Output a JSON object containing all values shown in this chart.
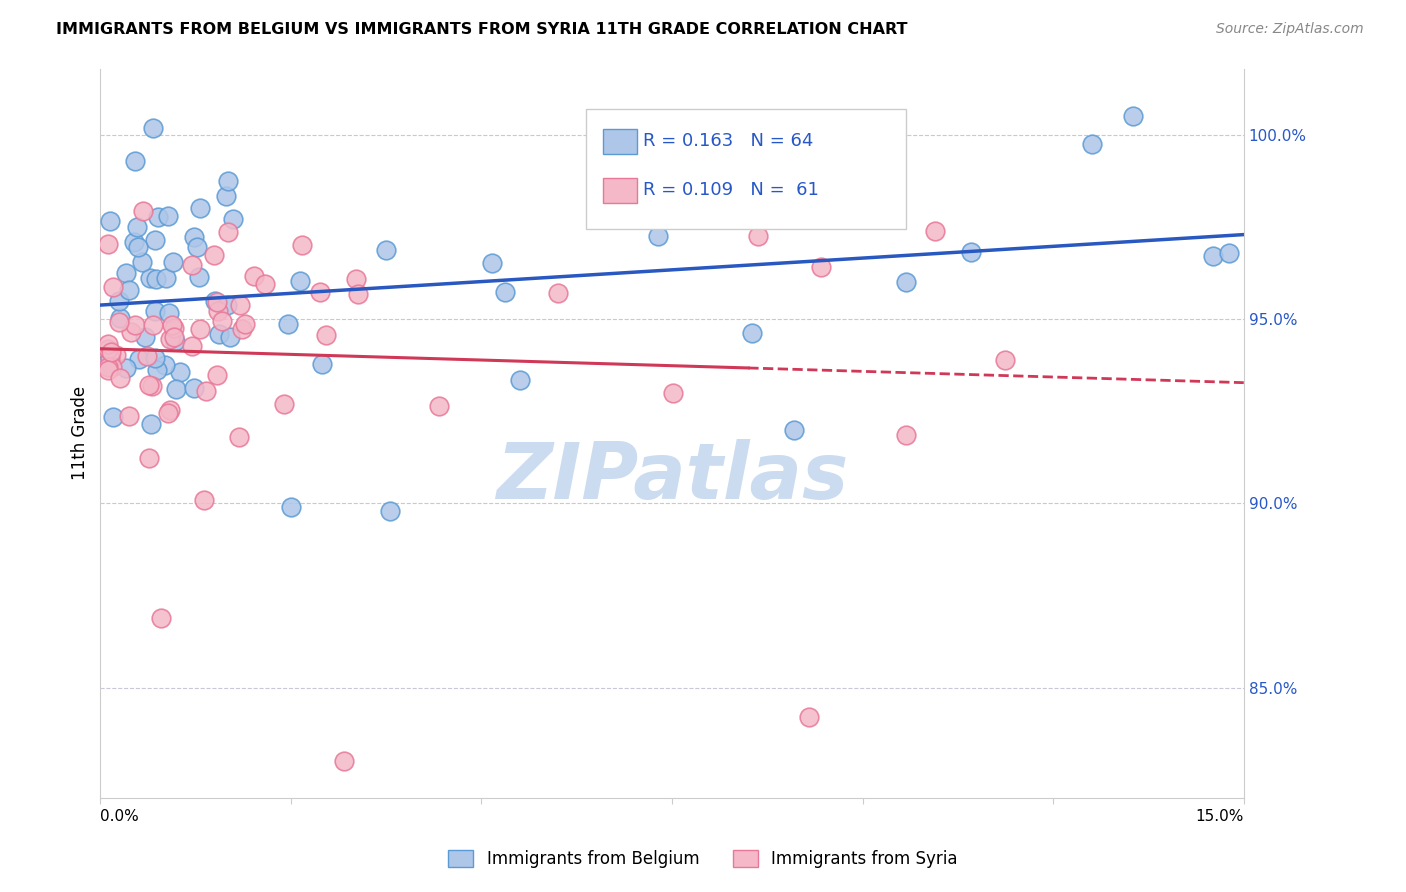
{
  "title": "IMMIGRANTS FROM BELGIUM VS IMMIGRANTS FROM SYRIA 11TH GRADE CORRELATION CHART",
  "source": "Source: ZipAtlas.com",
  "ylabel": "11th Grade",
  "ylabel_right_ticks": [
    "100.0%",
    "95.0%",
    "90.0%",
    "85.0%"
  ],
  "ylabel_right_values": [
    1.0,
    0.95,
    0.9,
    0.85
  ],
  "xmin": 0.0,
  "xmax": 0.15,
  "ymin": 0.82,
  "ymax": 1.018,
  "legend_R_belgium": "R = 0.163",
  "legend_N_belgium": "N = 64",
  "legend_R_syria": "R = 0.109",
  "legend_N_syria": "N =  61",
  "color_belgium": "#aec6e8",
  "color_syria": "#f4b8c8",
  "color_belgium_dark": "#5b9bd5",
  "color_syria_dark": "#e87898",
  "color_line_belgium": "#2858c0",
  "color_line_syria": "#d03858",
  "color_text_blue": "#2858c8",
  "watermark_color": "#ccdcf0",
  "background_color": "#ffffff"
}
